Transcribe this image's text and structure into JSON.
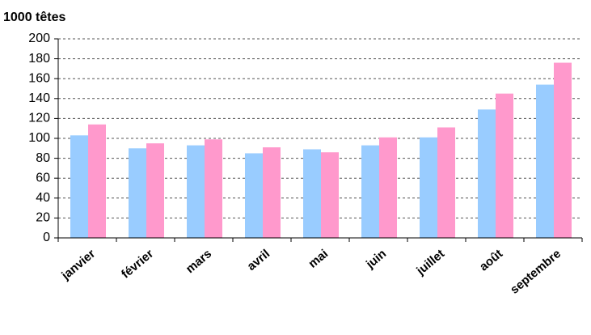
{
  "chart_data": {
    "type": "bar",
    "y_label": "1000 têtes",
    "categories": [
      "janvier",
      "février",
      "mars",
      "avril",
      "mai",
      "juin",
      "juillet",
      "août",
      "septembre"
    ],
    "series": [
      {
        "color": "#99ccff",
        "values": [
          103,
          90,
          93,
          85,
          89,
          93,
          101,
          129,
          154
        ]
      },
      {
        "color": "#ff99cc",
        "values": [
          114,
          95,
          99,
          91,
          86,
          101,
          111,
          145,
          176
        ]
      }
    ],
    "ylim": [
      0,
      200
    ],
    "yticks": [
      0,
      20,
      40,
      60,
      80,
      100,
      120,
      140,
      160,
      180,
      200
    ],
    "grid": true
  }
}
